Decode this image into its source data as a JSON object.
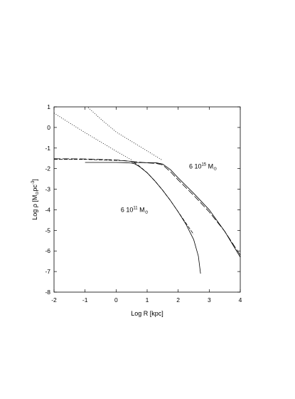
{
  "chart_data": {
    "type": "line",
    "title": "",
    "xlabel": "Log R [kpc]",
    "ylabel": {
      "base": "Log ρ [M",
      "sub": "⊙",
      "mid": "pc",
      "sup": "-3",
      "end": "]"
    },
    "xlim": [
      -2,
      4
    ],
    "ylim": [
      -8,
      1
    ],
    "xticks": [
      -2,
      -1,
      0,
      1,
      2,
      3,
      4
    ],
    "yticks": [
      1,
      0,
      -1,
      -2,
      -3,
      -4,
      -5,
      -6,
      -7,
      -8
    ],
    "grid": false,
    "legend": "none",
    "annotations": [
      {
        "id": "high-mass",
        "x": 2.35,
        "y": -2.0,
        "mantissa": "6 10",
        "exponent": "15",
        "unit": " M",
        "unit_sub": "⊙"
      },
      {
        "id": "low-mass",
        "x": 0.15,
        "y": -4.1,
        "mantissa": "6 10",
        "exponent": "11",
        "unit": " M",
        "unit_sub": "⊙"
      }
    ],
    "series": [
      {
        "style": "dotted",
        "x": [
          -2.0,
          -1.5,
          -1.0,
          -0.5,
          0.0,
          0.5
        ],
        "y": [
          0.7,
          0.22,
          -0.25,
          -0.7,
          -1.15,
          -1.58
        ]
      },
      {
        "style": "dotted",
        "x": [
          -0.9,
          -0.5,
          0.0,
          0.5,
          1.0,
          1.5
        ],
        "y": [
          0.97,
          0.42,
          -0.22,
          -0.68,
          -1.14,
          -1.6
        ]
      },
      {
        "style": "dashed",
        "x": [
          -2.0,
          -1.0,
          0.0,
          0.3,
          0.5,
          0.6,
          0.75,
          1.0,
          1.25,
          1.5,
          1.75,
          2.0,
          2.25,
          2.5
        ],
        "y": [
          -1.55,
          -1.55,
          -1.6,
          -1.62,
          -1.65,
          -1.72,
          -1.88,
          -2.2,
          -2.6,
          -3.05,
          -3.55,
          -4.1,
          -4.65,
          -5.2
        ]
      },
      {
        "style": "solid",
        "x": [
          -1.0,
          0.0,
          0.3,
          0.5,
          0.6,
          0.75,
          1.0,
          1.25,
          1.5,
          1.75,
          2.0,
          2.25,
          2.5,
          2.65,
          2.72
        ],
        "y": [
          -1.7,
          -1.7,
          -1.71,
          -1.73,
          -1.77,
          -1.9,
          -2.2,
          -2.6,
          -3.05,
          -3.55,
          -4.1,
          -4.7,
          -5.45,
          -6.25,
          -7.1
        ]
      },
      {
        "style": "longdash",
        "x": [
          -2.0,
          -1.0,
          0.0,
          0.5,
          1.0,
          1.3,
          1.5,
          1.75,
          2.0,
          2.5,
          3.0,
          3.5,
          4.0
        ],
        "y": [
          -1.52,
          -1.53,
          -1.58,
          -1.65,
          -1.72,
          -1.75,
          -1.82,
          -2.15,
          -2.55,
          -3.3,
          -4.1,
          -5.05,
          -6.2
        ]
      },
      {
        "style": "solid",
        "x": [
          0.5,
          1.0,
          1.3,
          1.5,
          1.75,
          2.0,
          2.5,
          3.0,
          3.5,
          4.0
        ],
        "y": [
          -1.7,
          -1.71,
          -1.72,
          -1.78,
          -2.05,
          -2.45,
          -3.2,
          -4.0,
          -5.05,
          -6.3
        ]
      }
    ]
  }
}
